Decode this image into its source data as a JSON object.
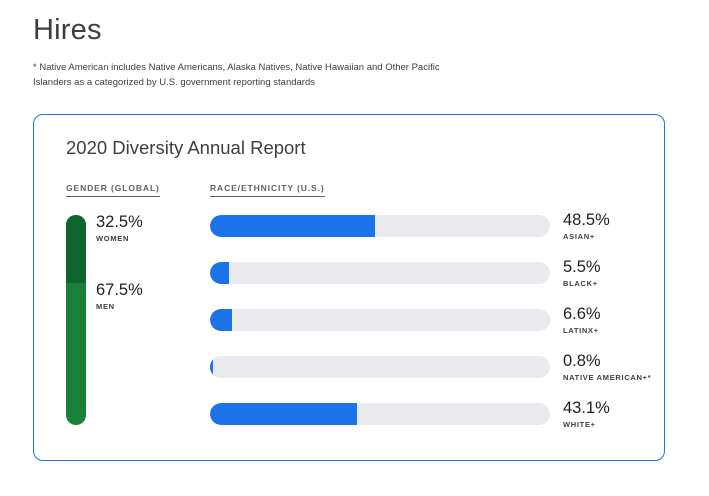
{
  "header": {
    "title": "Hires",
    "footnote_line1": "* Native American includes Native Americans, Alaska Natives, Native Hawaiian and Other Pacific",
    "footnote_line2": "Islanders as a categorized by U.S. government reporting standards"
  },
  "colors": {
    "accent_blue": "#1a73e8",
    "track_gray": "#e8eaed",
    "women_green": "#0d652d",
    "men_green": "#188038"
  },
  "chart_data": [
    {
      "type": "bar",
      "title": "2020 Diversity Annual Report",
      "section_label": "GENDER (GLOBAL)",
      "orientation": "vertical-stacked",
      "series": [
        {
          "name": "WOMEN",
          "value": 32.5,
          "label": "32.5%"
        },
        {
          "name": "MEN",
          "value": 67.5,
          "label": "67.5%"
        }
      ],
      "ylim": [
        0,
        100
      ]
    },
    {
      "type": "bar",
      "section_label": "RACE/ETHNICITY (U.S.)",
      "orientation": "horizontal",
      "categories": [
        "ASIAN+",
        "BLACK+",
        "LATINX+",
        "NATIVE AMERICAN+*",
        "WHITE+"
      ],
      "values": [
        48.5,
        5.5,
        6.6,
        0.8,
        43.1
      ],
      "labels": [
        "48.5%",
        "5.5%",
        "6.6%",
        "0.8%",
        "43.1%"
      ],
      "xlim": [
        0,
        100
      ]
    }
  ]
}
